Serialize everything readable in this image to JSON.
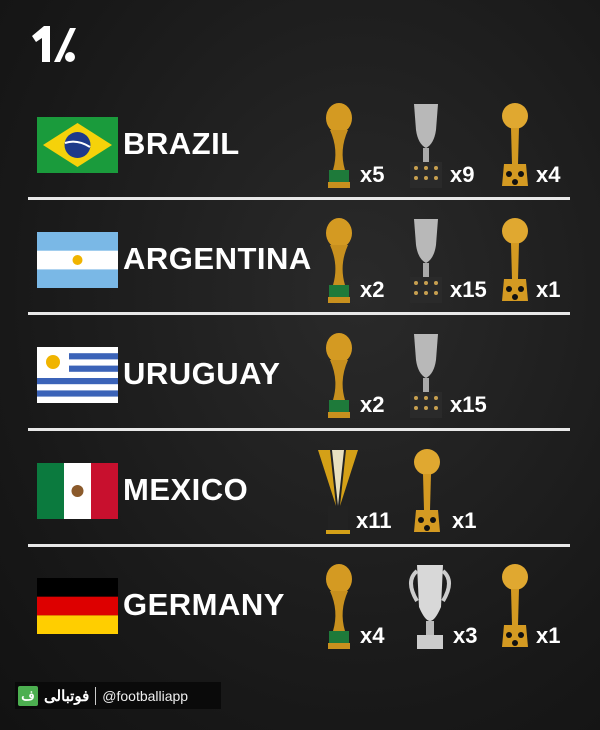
{
  "footer": {
    "brand_arabic": "فوتبالی",
    "brand_icon_letter": "ف",
    "handle": "@footballiapp"
  },
  "colors": {
    "background": "#1c1c1c",
    "text": "#ffffff",
    "gold": "#d4a017",
    "silver": "#c0c0c0",
    "footer_green": "#4caf50"
  },
  "rows": [
    {
      "country": "BRAZIL",
      "trophies": [
        {
          "icon": "world-cup-trophy",
          "count": "x5"
        },
        {
          "icon": "copa-america-trophy",
          "count": "x9"
        },
        {
          "icon": "confederations-cup-trophy",
          "count": "x4"
        }
      ]
    },
    {
      "country": "ARGENTINA",
      "trophies": [
        {
          "icon": "world-cup-trophy",
          "count": "x2"
        },
        {
          "icon": "copa-america-trophy",
          "count": "x15"
        },
        {
          "icon": "confederations-cup-trophy",
          "count": "x1"
        }
      ]
    },
    {
      "country": "URUGUAY",
      "trophies": [
        {
          "icon": "world-cup-trophy",
          "count": "x2"
        },
        {
          "icon": "copa-america-trophy",
          "count": "x15"
        }
      ]
    },
    {
      "country": "MEXICO",
      "trophies": [
        {
          "icon": "gold-cup-trophy",
          "count": "x11"
        },
        {
          "icon": "confederations-cup-trophy",
          "count": "x1"
        }
      ]
    },
    {
      "country": "GERMANY",
      "trophies": [
        {
          "icon": "world-cup-trophy",
          "count": "x4"
        },
        {
          "icon": "euro-trophy",
          "count": "x3"
        },
        {
          "icon": "confederations-cup-trophy",
          "count": "x1"
        }
      ]
    }
  ]
}
